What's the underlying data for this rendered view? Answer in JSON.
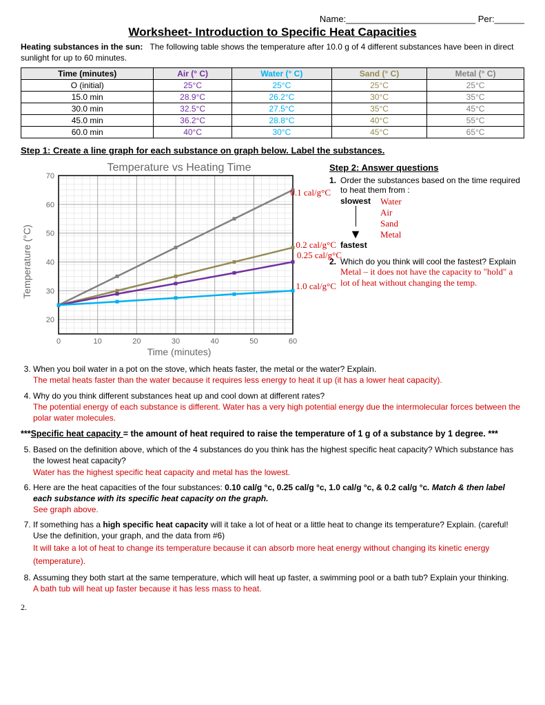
{
  "header": {
    "name_label": "Name:",
    "per_label": "Per:"
  },
  "title": "Worksheet- Introduction to Specific Heat Capacities",
  "intro_bold": "Heating substances in the sun:",
  "intro_text": "The following table shows the temperature after 10.0 g of 4 different substances have been in direct sunlight for up to 60 minutes.",
  "table": {
    "headers": [
      "Time (minutes)",
      "Air (° C)",
      "Water (° C)",
      "Sand (° C)",
      "Metal (° C)"
    ],
    "header_colors": [
      "#000000",
      "#7030a0",
      "#00b0f0",
      "#948a54",
      "#808080"
    ],
    "rows": [
      [
        "O (initial)",
        "25°C",
        "25°C",
        "25°C",
        "25°C"
      ],
      [
        "15.0 min",
        "28.9°C",
        "26.2°C",
        "30°C",
        "35°C"
      ],
      [
        "30.0 min",
        "32.5°C",
        "27.5°C",
        "35°C",
        "45°C"
      ],
      [
        "45.0 min",
        "36.2°C",
        "28.8°C",
        "40°C",
        "55°C"
      ],
      [
        "60.0 min",
        "40°C",
        "30°C",
        "45°C",
        "65°C"
      ]
    ],
    "cell_colors": [
      "#000000",
      "#7030a0",
      "#00b0f0",
      "#948a54",
      "#808080"
    ]
  },
  "step1": "Step 1:  Create a line graph for each substance on graph below.  Label the substances.",
  "chart": {
    "title": "Temperature vs Heating Time",
    "xlabel": "Time  (minutes)",
    "ylabel": "Temperature  (°C)",
    "xlim": [
      0,
      60
    ],
    "ylim": [
      15,
      70
    ],
    "xticks": [
      0,
      10,
      20,
      30,
      40,
      50,
      60
    ],
    "yticks": [
      20,
      30,
      40,
      50,
      60,
      70
    ],
    "series": [
      {
        "name": "Metal",
        "color": "#808080",
        "points": [
          [
            0,
            25
          ],
          [
            15,
            35
          ],
          [
            30,
            45
          ],
          [
            45,
            55
          ],
          [
            60,
            65
          ]
        ]
      },
      {
        "name": "Sand",
        "color": "#948a54",
        "points": [
          [
            0,
            25
          ],
          [
            15,
            30
          ],
          [
            30,
            35
          ],
          [
            45,
            40
          ],
          [
            60,
            45
          ]
        ]
      },
      {
        "name": "Air",
        "color": "#7030a0",
        "points": [
          [
            0,
            25
          ],
          [
            15,
            28.9
          ],
          [
            30,
            32.5
          ],
          [
            45,
            36.2
          ],
          [
            60,
            40
          ]
        ]
      },
      {
        "name": "Water",
        "color": "#00b0f0",
        "points": [
          [
            0,
            25
          ],
          [
            15,
            26.2
          ],
          [
            30,
            27.5
          ],
          [
            45,
            28.8
          ],
          [
            60,
            30
          ]
        ]
      }
    ],
    "annotations": [
      "0.1 cal/g°C",
      "0.2 cal/g°C",
      "0.25 cal/g°C",
      "1.0 cal/g°C"
    ],
    "grid_color": "#c0c0c0",
    "background": "#ffffff"
  },
  "step2_title": "Step 2: Answer questions",
  "q1": {
    "text": "Order the substances based on the time required to heat them from :",
    "slowest": "slowest",
    "fastest": "fastest",
    "answers": [
      "Water",
      "Air",
      "Sand",
      "Metal"
    ]
  },
  "q2": {
    "text": "Which do you think will cool the fastest? Explain",
    "answer": "Metal – it does not have the capacity to \"hold\" a lot of heat without changing the temp."
  },
  "q3": {
    "text": "When you boil water in a pot on the stove, which heats faster, the metal or the water? Explain.",
    "answer": "The metal heats faster than the water because it requires less energy to heat it up (it has a lower heat capacity)."
  },
  "q4": {
    "text": "Why do you think different substances heat up and cool down at different rates?",
    "answer": "The potential energy of each substance is different.  Water has a very high potential energy due the intermolecular forces between the polar water molecules."
  },
  "definition": "***Specific heat capacity = the amount of heat required to raise the temperature of 1 g of a substance by 1 degree. ***",
  "definition_plain1": "***",
  "definition_underline": "Specific heat capacity ",
  "definition_plain2": "= the amount of heat required to raise the temperature of 1 g of a substance by 1 degree. ***",
  "q5": {
    "text": "Based on the definition above, which of the 4 substances do you think has the highest specific heat capacity? Which substance has the lowest heat capacity?",
    "answer": "Water has the highest specific heat capacity and metal has the lowest."
  },
  "q6": {
    "text_a": "Here are the heat capacities of the four substances: ",
    "text_b": "0.10 cal/g °c, 0.25 cal/g °c, 1.0 cal/g °c, & 0.2 cal/g °c",
    "text_c": ".  Match & then label each substance with its specific heat capacity on the graph.",
    "answer": "See graph above."
  },
  "q7": {
    "text_a": "If something has a ",
    "text_b": "high specific heat capacity",
    "text_c": " will it take a lot of heat or a little heat to change its temperature? Explain. (careful!  Use the definition, your graph, and the data from #6)",
    "answer": "It will take a lot of heat to change its temperature because it can absorb more heat energy without changing its kinetic energy (temperature)."
  },
  "q8": {
    "text": "Assuming they both start at the same temperature, which will heat up faster, a swimming pool or a bath tub? Explain your thinking.",
    "answer": "A bath tub will heat up faster because it has less mass to heat."
  },
  "page_num": "2."
}
